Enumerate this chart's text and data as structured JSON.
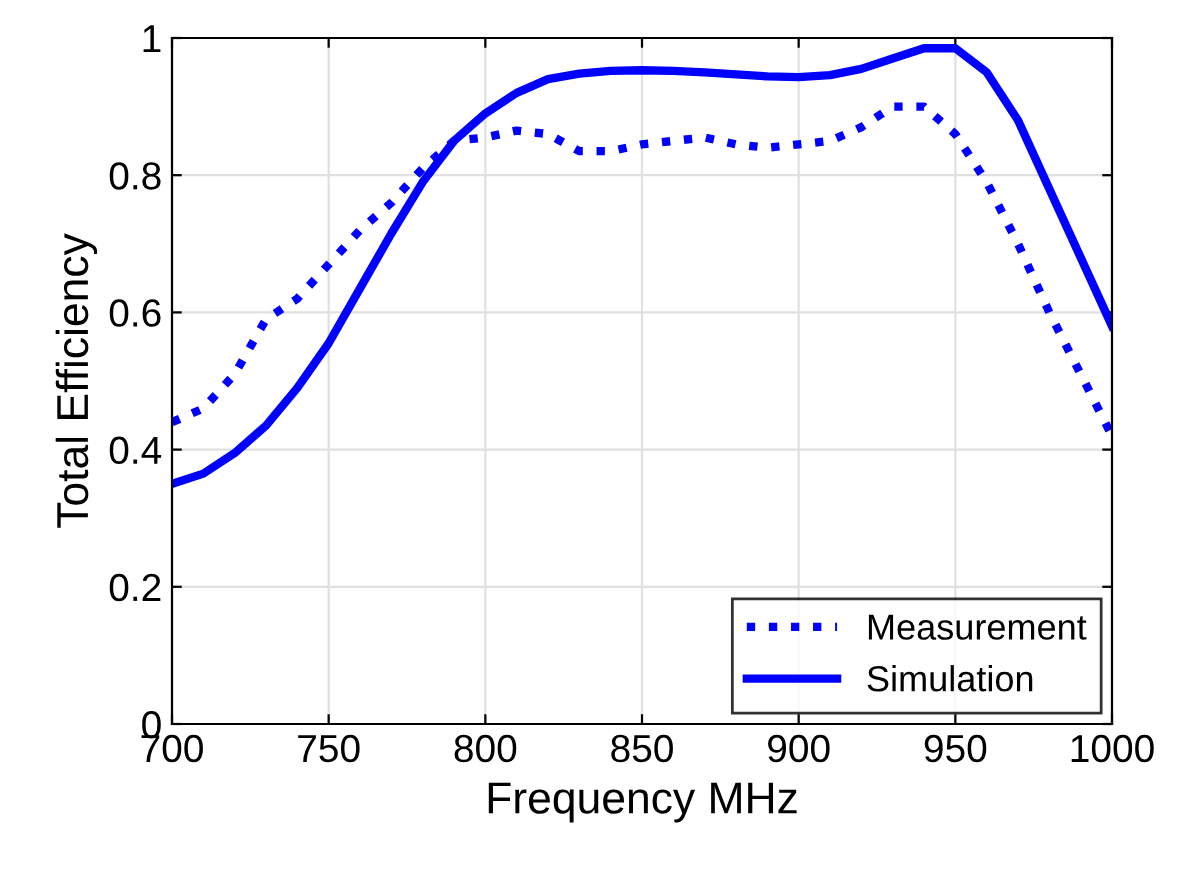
{
  "chart_data": {
    "type": "line",
    "xlabel": "Frequency MHz",
    "ylabel": "Total Efficiency",
    "x": [
      700,
      710,
      720,
      730,
      740,
      750,
      760,
      770,
      780,
      790,
      800,
      810,
      820,
      830,
      840,
      850,
      860,
      870,
      880,
      890,
      900,
      910,
      920,
      930,
      940,
      950,
      960,
      970,
      980,
      990,
      1000
    ],
    "series": [
      {
        "name": "Measurement",
        "color": "#0000ff",
        "line_style": "dotted",
        "values": [
          0.44,
          0.46,
          0.51,
          0.59,
          0.62,
          0.67,
          0.72,
          0.76,
          0.81,
          0.85,
          0.855,
          0.865,
          0.86,
          0.835,
          0.835,
          0.845,
          0.85,
          0.855,
          0.845,
          0.84,
          0.845,
          0.85,
          0.87,
          0.9,
          0.9,
          0.86,
          0.79,
          0.7,
          0.6,
          0.51,
          0.42
        ]
      },
      {
        "name": "Simulation",
        "color": "#0000ff",
        "line_style": "solid",
        "values": [
          0.35,
          0.365,
          0.395,
          0.435,
          0.49,
          0.555,
          0.635,
          0.715,
          0.79,
          0.85,
          0.89,
          0.92,
          0.94,
          0.948,
          0.952,
          0.953,
          0.952,
          0.95,
          0.947,
          0.944,
          0.943,
          0.946,
          0.955,
          0.97,
          0.985,
          0.985,
          0.95,
          0.88,
          0.78,
          0.68,
          0.58
        ]
      }
    ],
    "xlim": [
      700,
      1000
    ],
    "xticks": [
      700,
      750,
      800,
      850,
      900,
      950,
      1000
    ],
    "ylim": [
      0,
      1
    ],
    "yticks": [
      0,
      0.2,
      0.4,
      0.6,
      0.8,
      1
    ],
    "grid": true,
    "legend": "bottom right"
  }
}
